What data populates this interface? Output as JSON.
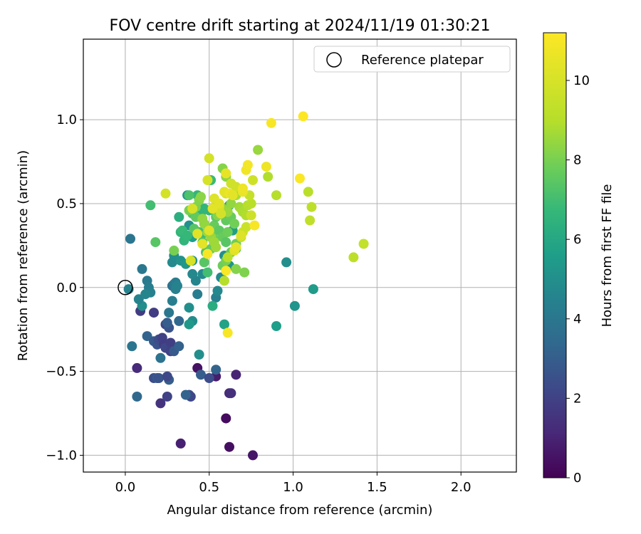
{
  "chart_data": {
    "type": "scatter",
    "title": "FOV centre drift starting at 2024/11/19 01:30:21",
    "xlabel": "Angular distance from reference (arcmin)",
    "ylabel": "Rotation from reference (arcmin)",
    "xlim": [
      -0.25,
      2.33
    ],
    "ylim": [
      -1.1,
      1.48
    ],
    "x_ticks": [
      0.0,
      0.5,
      1.0,
      1.5,
      2.0
    ],
    "x_tick_labels": [
      "0.0",
      "0.5",
      "1.0",
      "1.5",
      "2.0"
    ],
    "y_ticks": [
      -1.0,
      -0.5,
      0.0,
      0.5,
      1.0
    ],
    "y_tick_labels": [
      "−1.0",
      "−0.5",
      "0.0",
      "0.5",
      "1.0"
    ],
    "grid": true,
    "legend": {
      "position": "top-right",
      "entries": [
        {
          "label": "Reference platepar",
          "marker": "open-circle"
        }
      ]
    },
    "reference_point": {
      "x": 0.0,
      "y": 0.0
    },
    "colorbar": {
      "label": "Hours from first FF file",
      "colormap": "viridis",
      "range": [
        0,
        11.2
      ],
      "ticks": [
        0,
        2,
        4,
        6,
        8,
        10
      ],
      "tick_labels": [
        "0",
        "2",
        "4",
        "6",
        "8",
        "10"
      ]
    },
    "points": [
      [
        0.33,
        -0.93,
        0.9
      ],
      [
        0.62,
        -0.95,
        0.4
      ],
      [
        0.76,
        -1.0,
        0.6
      ],
      [
        0.6,
        -0.78,
        0.3
      ],
      [
        0.43,
        -0.48,
        0.5
      ],
      [
        0.54,
        -0.53,
        0.8
      ],
      [
        0.66,
        -0.52,
        1.0
      ],
      [
        0.62,
        -0.63,
        1.2
      ],
      [
        0.63,
        -0.63,
        1.4
      ],
      [
        0.07,
        -0.48,
        1.2
      ],
      [
        0.21,
        -0.69,
        1.5
      ],
      [
        0.25,
        -0.65,
        2.0
      ],
      [
        0.38,
        -0.64,
        2.6
      ],
      [
        0.39,
        -0.65,
        2.2
      ],
      [
        0.36,
        -0.64,
        3.2
      ],
      [
        0.07,
        -0.65,
        3.4
      ],
      [
        0.17,
        -0.54,
        2.4
      ],
      [
        0.19,
        -0.54,
        2.8
      ],
      [
        0.2,
        -0.54,
        2.6
      ],
      [
        0.26,
        -0.55,
        3.0
      ],
      [
        0.25,
        -0.53,
        2.2
      ],
      [
        0.45,
        -0.52,
        3.0
      ],
      [
        0.5,
        -0.54,
        2.4
      ],
      [
        0.54,
        -0.49,
        3.2
      ],
      [
        0.09,
        -0.14,
        1.8
      ],
      [
        0.17,
        -0.15,
        1.8
      ],
      [
        0.24,
        -0.22,
        2.0
      ],
      [
        0.26,
        -0.24,
        2.6
      ],
      [
        0.25,
        -0.21,
        3.0
      ],
      [
        0.13,
        -0.29,
        3.2
      ],
      [
        0.17,
        -0.32,
        2.8
      ],
      [
        0.19,
        -0.34,
        2.6
      ],
      [
        0.2,
        -0.31,
        2.4
      ],
      [
        0.22,
        -0.3,
        2.0
      ],
      [
        0.23,
        -0.34,
        1.8
      ],
      [
        0.21,
        -0.42,
        3.8
      ],
      [
        0.24,
        -0.36,
        2.2
      ],
      [
        0.27,
        -0.33,
        1.9
      ],
      [
        0.27,
        -0.38,
        2.0
      ],
      [
        0.29,
        -0.38,
        2.8
      ],
      [
        0.32,
        -0.35,
        3.1
      ],
      [
        0.32,
        -0.2,
        3.4
      ],
      [
        0.26,
        -0.15,
        4.0
      ],
      [
        0.28,
        -0.08,
        4.3
      ],
      [
        0.04,
        -0.35,
        3.9
      ],
      [
        0.03,
        0.29,
        3.9
      ],
      [
        0.1,
        0.11,
        4.0
      ],
      [
        0.13,
        0.04,
        4.1
      ],
      [
        0.14,
        0.0,
        4.3
      ],
      [
        0.15,
        -0.03,
        4.4
      ],
      [
        0.12,
        -0.04,
        4.6
      ],
      [
        0.1,
        -0.11,
        4.9
      ],
      [
        0.08,
        -0.07,
        4.5
      ],
      [
        0.02,
        -0.01,
        4.5
      ],
      [
        0.28,
        0.01,
        3.8
      ],
      [
        0.29,
        0.02,
        4.0
      ],
      [
        0.3,
        0.03,
        4.2
      ],
      [
        0.3,
        -0.01,
        4.4
      ],
      [
        0.31,
        0.01,
        4.5
      ],
      [
        0.38,
        -0.12,
        5.0
      ],
      [
        0.42,
        0.04,
        4.6
      ],
      [
        0.43,
        -0.04,
        4.3
      ],
      [
        0.46,
        0.08,
        4.8
      ],
      [
        0.4,
        0.08,
        4.7
      ],
      [
        0.4,
        -0.2,
        4.9
      ],
      [
        0.38,
        -0.22,
        5.4
      ],
      [
        0.44,
        -0.4,
        5.0
      ],
      [
        0.54,
        -0.06,
        4.4
      ],
      [
        0.55,
        -0.02,
        4.7
      ],
      [
        0.57,
        0.06,
        4.8
      ],
      [
        0.28,
        0.15,
        4.8
      ],
      [
        0.29,
        0.19,
        5.0
      ],
      [
        0.33,
        0.16,
        5.1
      ],
      [
        0.36,
        0.14,
        5.3
      ],
      [
        0.37,
        0.55,
        5.2
      ],
      [
        0.38,
        0.37,
        5.1
      ],
      [
        0.4,
        0.3,
        5.6
      ],
      [
        0.4,
        0.16,
        5.0
      ],
      [
        0.59,
        -0.22,
        5.8
      ],
      [
        0.59,
        0.19,
        5.0
      ],
      [
        0.62,
        0.13,
        5.2
      ],
      [
        0.64,
        0.34,
        5.6
      ],
      [
        0.62,
        0.49,
        5.4
      ],
      [
        0.96,
        0.15,
        5.0
      ],
      [
        1.01,
        -0.11,
        5.2
      ],
      [
        0.9,
        -0.23,
        5.6
      ],
      [
        1.12,
        -0.01,
        5.5
      ],
      [
        0.52,
        -0.11,
        6.2
      ],
      [
        0.45,
        0.43,
        6.5
      ],
      [
        0.47,
        0.47,
        6.6
      ],
      [
        0.5,
        0.46,
        6.6
      ],
      [
        0.43,
        0.55,
        6.6
      ],
      [
        0.51,
        0.64,
        6.8
      ],
      [
        0.46,
        0.32,
        6.8
      ],
      [
        0.44,
        0.33,
        7.0
      ],
      [
        0.33,
        0.33,
        6.6
      ],
      [
        0.34,
        0.34,
        6.8
      ],
      [
        0.35,
        0.28,
        6.6
      ],
      [
        0.37,
        0.31,
        6.7
      ],
      [
        0.32,
        0.42,
        6.3
      ],
      [
        0.15,
        0.49,
        7.0
      ],
      [
        0.18,
        0.27,
        7.4
      ],
      [
        0.38,
        0.55,
        7.2
      ],
      [
        0.4,
        0.44,
        7.3
      ],
      [
        0.41,
        0.35,
        7.4
      ],
      [
        0.42,
        0.42,
        7.6
      ],
      [
        0.46,
        0.27,
        7.3
      ],
      [
        0.48,
        0.21,
        7.2
      ],
      [
        0.47,
        0.15,
        7.4
      ],
      [
        0.49,
        0.09,
        7.0
      ],
      [
        0.51,
        0.23,
        7.6
      ],
      [
        0.53,
        0.29,
        7.8
      ],
      [
        0.52,
        0.33,
        7.9
      ],
      [
        0.53,
        0.37,
        7.7
      ],
      [
        0.54,
        0.42,
        7.5
      ],
      [
        0.56,
        0.34,
        7.5
      ],
      [
        0.58,
        0.3,
        7.7
      ],
      [
        0.6,
        0.27,
        7.4
      ],
      [
        0.61,
        0.33,
        7.8
      ],
      [
        0.6,
        0.4,
        7.6
      ],
      [
        0.63,
        0.42,
        7.7
      ],
      [
        0.65,
        0.38,
        7.9
      ],
      [
        0.66,
        0.23,
        7.5
      ],
      [
        0.66,
        0.26,
        7.8
      ],
      [
        0.63,
        0.21,
        7.6
      ],
      [
        0.58,
        0.13,
        7.8
      ],
      [
        0.6,
        0.16,
        8.0
      ],
      [
        0.66,
        0.11,
        8.2
      ],
      [
        0.71,
        0.09,
        8.1
      ],
      [
        0.29,
        0.22,
        8.0
      ],
      [
        0.38,
        0.46,
        8.0
      ],
      [
        0.42,
        0.48,
        8.1
      ],
      [
        0.44,
        0.52,
        8.2
      ],
      [
        0.45,
        0.54,
        8.3
      ],
      [
        0.47,
        0.38,
        8.4
      ],
      [
        0.46,
        0.41,
        8.4
      ],
      [
        0.49,
        0.33,
        8.5
      ],
      [
        0.51,
        0.3,
        8.5
      ],
      [
        0.53,
        0.27,
        8.6
      ],
      [
        0.54,
        0.24,
        8.6
      ],
      [
        0.55,
        0.43,
        8.2
      ],
      [
        0.56,
        0.46,
        8.3
      ],
      [
        0.58,
        0.47,
        8.4
      ],
      [
        0.61,
        0.45,
        8.5
      ],
      [
        0.63,
        0.5,
        8.4
      ],
      [
        0.58,
        0.71,
        8.2
      ],
      [
        0.6,
        0.66,
        8.3
      ],
      [
        0.66,
        0.55,
        8.8
      ],
      [
        0.68,
        0.48,
        8.6
      ],
      [
        0.69,
        0.47,
        8.7
      ],
      [
        0.7,
        0.45,
        8.8
      ],
      [
        0.72,
        0.43,
        8.9
      ],
      [
        0.73,
        0.49,
        9.0
      ],
      [
        0.75,
        0.5,
        9.1
      ],
      [
        0.79,
        0.82,
        8.5
      ],
      [
        0.85,
        0.66,
        8.9
      ],
      [
        0.9,
        0.55,
        9.0
      ],
      [
        1.09,
        0.57,
        9.1
      ],
      [
        1.11,
        0.48,
        9.2
      ],
      [
        1.1,
        0.4,
        9.3
      ],
      [
        1.36,
        0.18,
        9.2
      ],
      [
        1.42,
        0.26,
        9.4
      ],
      [
        0.59,
        0.04,
        9.0
      ],
      [
        0.61,
        0.18,
        9.1
      ],
      [
        0.69,
        0.3,
        9.5
      ],
      [
        0.7,
        0.33,
        9.6
      ],
      [
        0.72,
        0.36,
        9.6
      ],
      [
        0.75,
        0.43,
        9.7
      ],
      [
        0.74,
        0.55,
        9.5
      ],
      [
        0.76,
        0.64,
        9.7
      ],
      [
        0.63,
        0.62,
        9.8
      ],
      [
        0.66,
        0.6,
        9.8
      ],
      [
        0.6,
        0.56,
        9.8
      ],
      [
        0.57,
        0.44,
        9.9
      ],
      [
        0.56,
        0.48,
        9.9
      ],
      [
        0.49,
        0.64,
        10.0
      ],
      [
        0.5,
        0.77,
        9.9
      ],
      [
        0.24,
        0.56,
        9.9
      ],
      [
        0.39,
        0.16,
        10.0
      ],
      [
        0.4,
        0.47,
        10.0
      ],
      [
        0.43,
        0.32,
        10.3
      ],
      [
        0.46,
        0.26,
        10.4
      ],
      [
        0.5,
        0.34,
        10.2
      ],
      [
        0.52,
        0.47,
        10.4
      ],
      [
        0.53,
        0.53,
        10.2
      ],
      [
        0.56,
        0.5,
        10.3
      ],
      [
        0.59,
        0.57,
        10.4
      ],
      [
        0.6,
        0.68,
        10.5
      ],
      [
        0.62,
        0.56,
        10.6
      ],
      [
        0.64,
        0.55,
        10.4
      ],
      [
        0.65,
        0.22,
        10.3
      ],
      [
        0.66,
        0.24,
        10.5
      ],
      [
        0.69,
        0.31,
        10.2
      ],
      [
        0.7,
        0.57,
        10.6
      ],
      [
        0.7,
        0.59,
        10.7
      ],
      [
        0.72,
        0.7,
        10.8
      ],
      [
        0.73,
        0.73,
        10.9
      ],
      [
        0.77,
        0.37,
        11.0
      ],
      [
        0.84,
        0.72,
        10.7
      ],
      [
        0.87,
        0.98,
        11.0
      ],
      [
        1.04,
        0.65,
        11.1
      ],
      [
        1.06,
        1.02,
        11.2
      ],
      [
        0.49,
        0.2,
        11.0
      ],
      [
        0.6,
        0.1,
        11.1
      ],
      [
        0.61,
        -0.27,
        11.0
      ]
    ]
  }
}
